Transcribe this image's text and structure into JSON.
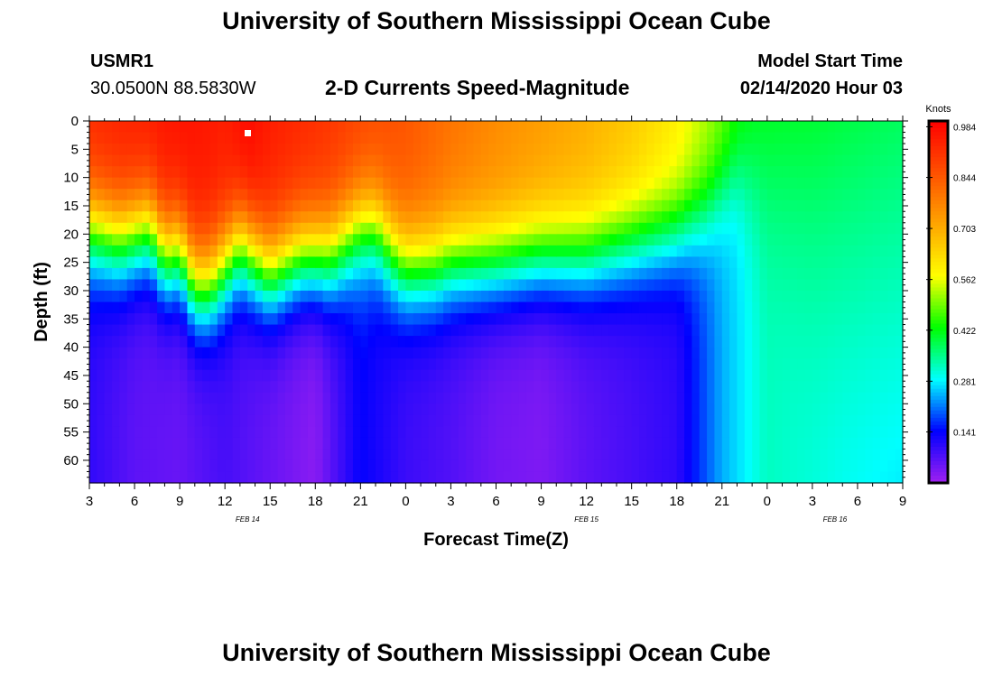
{
  "header": {
    "title_top": "University of Southern Mississippi Ocean Cube",
    "station_id": "USMR1",
    "coordinates": "30.0500N 88.5830W",
    "subtitle": "2-D Currents Speed-Magnitude",
    "model_start_label": "Model Start Time",
    "model_start_value": "02/14/2020 Hour 03",
    "title_bottom": "University of Southern Mississippi Ocean Cube"
  },
  "colors": {
    "palette": [
      "#a020f0",
      "#0000ff",
      "#00ffff",
      "#00ff00",
      "#ffff00",
      "#ffa500",
      "#ff5000",
      "#ff0000"
    ]
  },
  "chart_data": {
    "type": "heatmap",
    "title": "2-D Currents Speed-Magnitude",
    "xlabel": "Forecast Time(Z)",
    "ylabel": "Depth (ft)",
    "x_range_hours": [
      0,
      54
    ],
    "y_range_ft": [
      0,
      64
    ],
    "x_ticks": [
      "3",
      "6",
      "9",
      "12",
      "15",
      "18",
      "21",
      "0",
      "3",
      "6",
      "9",
      "12",
      "15",
      "18",
      "21",
      "0",
      "3",
      "6",
      "9"
    ],
    "y_ticks": [
      "0",
      "5",
      "10",
      "15",
      "20",
      "25",
      "30",
      "35",
      "40",
      "45",
      "50",
      "55",
      "60"
    ],
    "date_labels": [
      {
        "label": "FEB 14",
        "hour": 10.5
      },
      {
        "label": "FEB 15",
        "hour": 33
      },
      {
        "label": "FEB 16",
        "hour": 49.5
      }
    ],
    "colorbar": {
      "unit": "Knots",
      "min": 0.0,
      "max": 1.0,
      "ticks": [
        "0.984",
        "0.844",
        "0.703",
        "0.562",
        "0.422",
        "0.281",
        "0.141"
      ]
    },
    "surface_speed_knots": {
      "hours": [
        0,
        3,
        6,
        9,
        10.5,
        12,
        15,
        18,
        21,
        24,
        27,
        30,
        33,
        36,
        39,
        42,
        43,
        45,
        48,
        54
      ],
      "values": [
        0.93,
        0.95,
        0.97,
        0.95,
        0.99,
        0.95,
        0.92,
        0.88,
        0.85,
        0.8,
        0.76,
        0.73,
        0.7,
        0.66,
        0.6,
        0.5,
        0.45,
        0.44,
        0.46,
        0.48
      ]
    },
    "bottom_speed_knots": {
      "hours": [
        0,
        3,
        6,
        9,
        15,
        18,
        21,
        24,
        27,
        30,
        33,
        36,
        39,
        42,
        45,
        48,
        54
      ],
      "values": [
        0.1,
        0.06,
        0.05,
        0.08,
        0.02,
        0.14,
        0.09,
        0.07,
        0.04,
        0.03,
        0.06,
        0.08,
        0.1,
        0.24,
        0.32,
        0.3,
        0.24
      ]
    },
    "thermocline_depth_ft": {
      "hours": [
        0,
        2,
        4,
        5,
        6,
        7,
        8,
        10,
        12,
        14,
        16,
        18,
        19,
        20,
        21,
        22,
        23,
        24,
        27,
        30,
        33,
        36,
        39,
        41,
        42,
        43
      ],
      "values": [
        19,
        21,
        19,
        24,
        23,
        29,
        29,
        22,
        27,
        24,
        24,
        19,
        19,
        23,
        26,
        26,
        26,
        25,
        25,
        24,
        24,
        22,
        20,
        16,
        12,
        9
      ]
    }
  }
}
